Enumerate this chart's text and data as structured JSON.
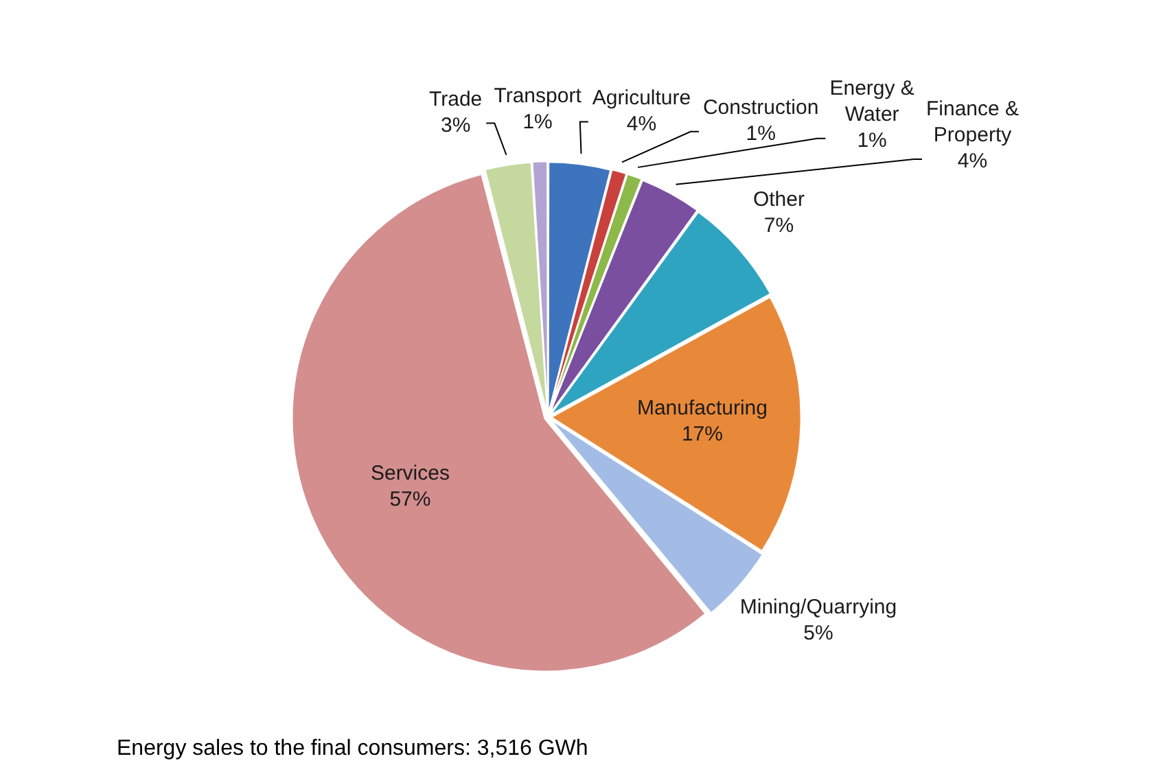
{
  "chart_data": {
    "type": "pie",
    "categories": [
      "Agriculture",
      "Construction",
      "Energy & Water",
      "Finance & Property",
      "Other",
      "Manufacturing",
      "Mining/Quarrying",
      "Services",
      "Trade",
      "Transport"
    ],
    "values": [
      4,
      1,
      1,
      4,
      7,
      17,
      5,
      57,
      3,
      1
    ],
    "colors": [
      "#3e74bd",
      "#c9413d",
      "#8db84a",
      "#7a4fa0",
      "#2fa4c0",
      "#e8893a",
      "#a3bce6",
      "#d48e8e",
      "#c5d89e",
      "#b3a3d2"
    ],
    "value_labels": [
      "4%",
      "1%",
      "1%",
      "4%",
      "7%",
      "17%",
      "5%",
      "57%",
      "3%",
      "1%"
    ],
    "annotations": [
      "Energy sales to the final consumers: 3,516 GWh"
    ]
  }
}
